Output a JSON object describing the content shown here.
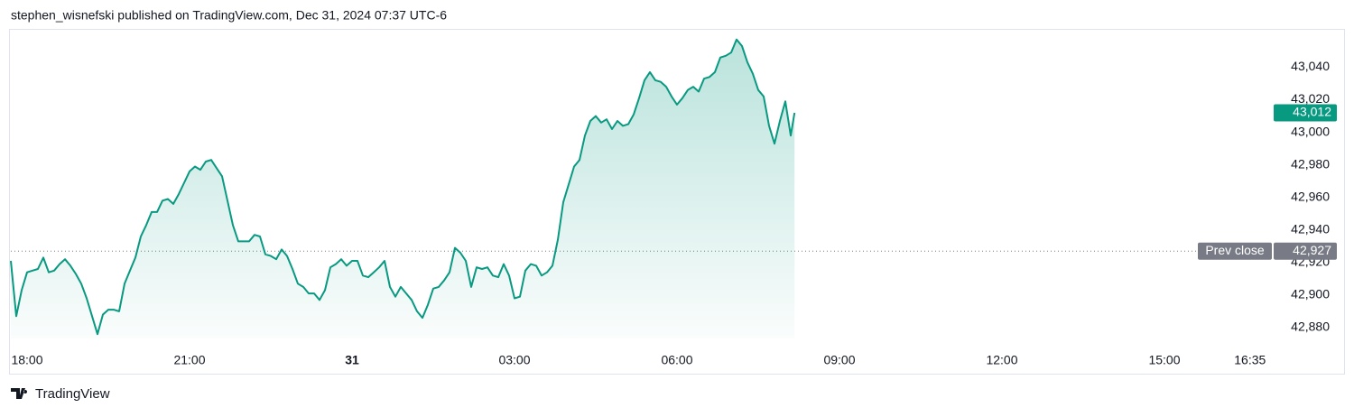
{
  "header": "stephen_wisnefski published on TradingView.com, Dec 31, 2024 07:37 UTC-6",
  "brand": "TradingView",
  "chart_data": {
    "type": "line",
    "color": "#089981",
    "x": [
      17.7,
      17.8,
      17.9,
      18,
      18.1,
      18.2,
      18.3,
      18.4,
      18.5,
      18.6,
      18.7,
      18.8,
      18.9,
      19,
      19.1,
      19.2,
      19.3,
      19.4,
      19.5,
      19.6,
      19.7,
      19.8,
      19.9,
      20,
      20.1,
      20.2,
      20.3,
      20.4,
      20.5,
      20.6,
      20.7,
      20.8,
      20.9,
      21,
      21.1,
      21.2,
      21.3,
      21.4,
      21.5,
      21.6,
      21.7,
      21.8,
      21.9,
      22,
      22.1,
      22.2,
      22.3,
      22.4,
      22.5,
      22.6,
      22.7,
      22.8,
      22.9,
      23,
      23.1,
      23.2,
      23.3,
      23.4,
      23.5,
      23.6,
      23.7,
      23.8,
      23.9,
      24,
      24.1,
      24.2,
      24.3,
      24.4,
      24.5,
      24.6,
      24.7,
      24.8,
      24.9,
      25,
      25.1,
      25.2,
      25.3,
      25.4,
      25.5,
      25.6,
      25.7,
      25.8,
      25.9,
      26,
      26.1,
      26.2,
      26.3,
      26.4,
      26.5,
      26.6,
      26.7,
      26.8,
      26.9,
      27,
      27.1,
      27.2,
      27.3,
      27.4,
      27.5,
      27.6,
      27.7,
      27.8,
      27.9,
      28,
      28.1,
      28.2,
      28.3,
      28.4,
      28.5,
      28.6,
      28.7,
      28.8,
      28.9,
      29,
      29.1,
      29.2,
      29.3,
      29.4,
      29.5,
      29.6,
      29.7,
      29.8,
      29.9,
      30,
      30.1,
      30.2,
      30.3,
      30.4,
      30.5,
      30.6,
      30.7,
      30.8,
      30.9,
      31,
      31.1,
      31.2,
      31.3,
      31.4,
      31.5,
      31.6,
      31.7,
      31.8,
      31.9,
      32,
      32.1,
      32.17
    ],
    "values": [
      42921,
      42887,
      42903,
      42914,
      42915,
      42916,
      42923,
      42914,
      42915,
      42919,
      42922,
      42918,
      42913,
      42907,
      42898,
      42887,
      42876,
      42888,
      42891,
      42891,
      42890,
      42907,
      42915,
      42923,
      42936,
      42943,
      42951,
      42951,
      42958,
      42959,
      42956,
      42962,
      42969,
      42976,
      42979,
      42977,
      42982,
      42983,
      42978,
      42973,
      42958,
      42943,
      42933,
      42933,
      42933,
      42937,
      42936,
      42925,
      42924,
      42922,
      42928,
      42924,
      42916,
      42907,
      42905,
      42901,
      42901,
      42897,
      42903,
      42917,
      42919,
      42922,
      42918,
      42921,
      42921,
      42912,
      42911,
      42914,
      42917,
      42921,
      42905,
      42899,
      42905,
      42901,
      42897,
      42890,
      42886,
      42894,
      42904,
      42905,
      42909,
      42914,
      42929,
      42926,
      42921,
      42905,
      42917,
      42916,
      42917,
      42912,
      42911,
      42919,
      42912,
      42898,
      42899,
      42915,
      42919,
      42918,
      42912,
      42914,
      42918,
      42934,
      42957,
      42968,
      42979,
      42983,
      42998,
      43007,
      43010,
      43006,
      43008,
      43002,
      43007,
      43004,
      43005,
      43011,
      43021,
      43032,
      43037,
      43032,
      43031,
      43028,
      43022,
      43017,
      43021,
      43026,
      43028,
      43025,
      43033,
      43034,
      43037,
      43046,
      43047,
      43049,
      43057,
      43053,
      43043,
      43036,
      43026,
      43022,
      43004,
      42993,
      43007,
      43019,
      42998,
      43012
    ],
    "xlim": [
      17.7,
      40.95
    ],
    "xticks": [
      {
        "value": 18,
        "label": "18:00"
      },
      {
        "value": 21,
        "label": "21:00"
      },
      {
        "value": 24,
        "label": "31"
      },
      {
        "value": 27,
        "label": "03:00"
      },
      {
        "value": 30,
        "label": "06:00"
      },
      {
        "value": 33,
        "label": "09:00"
      },
      {
        "value": 36,
        "label": "12:00"
      },
      {
        "value": 39,
        "label": "15:00"
      },
      {
        "value": 40.58,
        "label": "16:35"
      }
    ],
    "ylim": [
      42865,
      43063
    ],
    "yticks": [
      {
        "value": 42880,
        "label": "42,880"
      },
      {
        "value": 42900,
        "label": "42,900"
      },
      {
        "value": 42920,
        "label": "42,920"
      },
      {
        "value": 42940,
        "label": "42,940"
      },
      {
        "value": 42960,
        "label": "42,960"
      },
      {
        "value": 42980,
        "label": "42,980"
      },
      {
        "value": 43000,
        "label": "43,000"
      },
      {
        "value": 43020,
        "label": "43,020"
      },
      {
        "value": 43040,
        "label": "43,040"
      }
    ],
    "last_price": {
      "value": 43012,
      "label": "43,012"
    },
    "prev_close": {
      "name": "Prev close",
      "value": 42927,
      "label": "42,927"
    }
  }
}
